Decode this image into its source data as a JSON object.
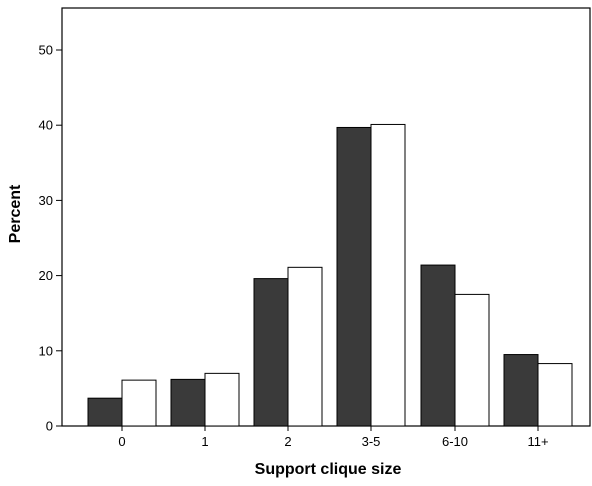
{
  "chart_data": {
    "type": "bar",
    "title": "",
    "xlabel": "Support clique size",
    "ylabel": "Percent",
    "categories": [
      "0",
      "1",
      "2",
      "3-5",
      "6-10",
      "11+"
    ],
    "series": [
      {
        "values": [
          3.7,
          6.2,
          19.6,
          39.7,
          21.4,
          9.5
        ],
        "color": "#3a3a3a"
      },
      {
        "values": [
          6.1,
          7.0,
          21.1,
          40.1,
          17.5,
          8.3
        ],
        "color": "#ffffff"
      }
    ],
    "ylim": [
      0,
      55
    ],
    "yticks": [
      0,
      10,
      20,
      30,
      40,
      50
    ],
    "grid": false,
    "legend": "none"
  }
}
